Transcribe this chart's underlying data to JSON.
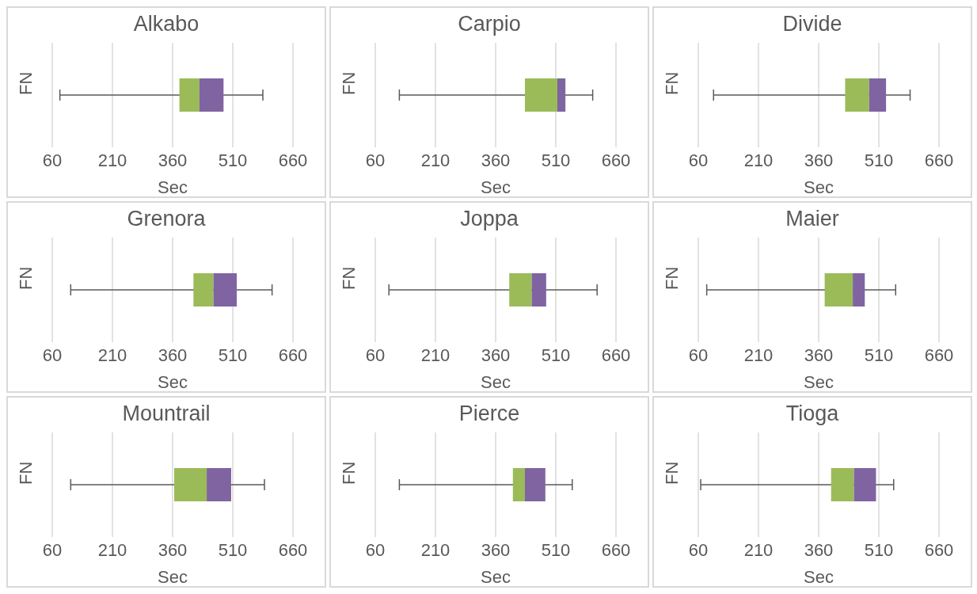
{
  "chart_data": [
    {
      "type": "box",
      "title": "Alkabo",
      "xlabel": "Sec",
      "ylabel": "FN",
      "orientation": "horizontal",
      "categories": [
        null
      ],
      "series": [
        {
          "color": "#9bbb59",
          "boxes": [
            {
              "low": 79,
              "q1": 377,
              "median": 427,
              "q3": 487,
              "high": 585
            }
          ]
        }
      ],
      "color": "#8064a2",
      "xlim": [
        60,
        660
      ],
      "xticks": [
        60,
        210,
        360,
        510,
        660
      ],
      "grid": "x"
    },
    {
      "type": "box",
      "title": "Carpio",
      "xlabel": "Sec",
      "ylabel": "FN",
      "orientation": "horizontal",
      "categories": [
        null
      ],
      "series": [
        {
          "color": "#9bbb59",
          "boxes": [
            {
              "low": 120,
              "q1": 433,
              "median": 514,
              "q3": 534,
              "high": 602
            }
          ]
        }
      ],
      "color": "#8064a2",
      "xlim": [
        60,
        660
      ],
      "xticks": [
        60,
        210,
        360,
        510,
        660
      ],
      "grid": "x"
    },
    {
      "type": "box",
      "title": "Divide",
      "xlabel": "Sec",
      "ylabel": "FN",
      "orientation": "horizontal",
      "categories": [
        null
      ],
      "series": [
        {
          "color": "#9bbb59",
          "boxes": [
            {
              "low": 98,
              "q1": 426,
              "median": 486,
              "q3": 528,
              "high": 588
            }
          ]
        }
      ],
      "color": "#8064a2",
      "xlim": [
        60,
        660
      ],
      "xticks": [
        60,
        210,
        360,
        510,
        660
      ],
      "grid": "x"
    },
    {
      "type": "box",
      "title": "Grenora",
      "xlabel": "Sec",
      "ylabel": "FN",
      "orientation": "horizontal",
      "categories": [
        null
      ],
      "series": [
        {
          "color": "#9bbb59",
          "boxes": [
            {
              "low": 106,
              "q1": 412,
              "median": 462,
              "q3": 520,
              "high": 608
            }
          ]
        }
      ],
      "color": "#8064a2",
      "xlim": [
        60,
        660
      ],
      "xticks": [
        60,
        210,
        360,
        510,
        660
      ],
      "grid": "x"
    },
    {
      "type": "box",
      "title": "Joppa",
      "xlabel": "Sec",
      "ylabel": "FN",
      "orientation": "horizontal",
      "categories": [
        null
      ],
      "series": [
        {
          "color": "#9bbb59",
          "boxes": [
            {
              "low": 94,
              "q1": 394,
              "median": 450,
              "q3": 486,
              "high": 613
            }
          ]
        }
      ],
      "color": "#8064a2",
      "xlim": [
        60,
        660
      ],
      "xticks": [
        60,
        210,
        360,
        510,
        660
      ],
      "grid": "x"
    },
    {
      "type": "box",
      "title": "Maier",
      "xlabel": "Sec",
      "ylabel": "FN",
      "orientation": "horizontal",
      "categories": [
        null
      ],
      "series": [
        {
          "color": "#9bbb59",
          "boxes": [
            {
              "low": 81,
              "q1": 375,
              "median": 445,
              "q3": 475,
              "high": 552
            }
          ]
        }
      ],
      "color": "#8064a2",
      "xlim": [
        60,
        660
      ],
      "xticks": [
        60,
        210,
        360,
        510,
        660
      ],
      "grid": "x"
    },
    {
      "type": "box",
      "title": "Mountrail",
      "xlabel": "Sec",
      "ylabel": "FN",
      "orientation": "horizontal",
      "categories": [
        null
      ],
      "series": [
        {
          "color": "#9bbb59",
          "boxes": [
            {
              "low": 106,
              "q1": 364,
              "median": 445,
              "q3": 506,
              "high": 589
            }
          ]
        }
      ],
      "color": "#8064a2",
      "xlim": [
        60,
        660
      ],
      "xticks": [
        60,
        210,
        360,
        510,
        660
      ],
      "grid": "x"
    },
    {
      "type": "box",
      "title": "Pierce",
      "xlabel": "Sec",
      "ylabel": "FN",
      "orientation": "horizontal",
      "categories": [
        null
      ],
      "series": [
        {
          "color": "#9bbb59",
          "boxes": [
            {
              "low": 120,
              "q1": 403,
              "median": 433,
              "q3": 484,
              "high": 551
            }
          ]
        }
      ],
      "color": "#8064a2",
      "xlim": [
        60,
        660
      ],
      "xticks": [
        60,
        210,
        360,
        510,
        660
      ],
      "grid": "x"
    },
    {
      "type": "box",
      "title": "Tioga",
      "xlabel": "Sec",
      "ylabel": "FN",
      "orientation": "horizontal",
      "categories": [
        null
      ],
      "series": [
        {
          "color": "#9bbb59",
          "boxes": [
            {
              "low": 66,
              "q1": 391,
              "median": 448,
              "q3": 503,
              "high": 547
            }
          ]
        }
      ],
      "color": "#8064a2",
      "xlim": [
        60,
        660
      ],
      "xticks": [
        60,
        210,
        360,
        510,
        660
      ],
      "grid": "x"
    }
  ]
}
